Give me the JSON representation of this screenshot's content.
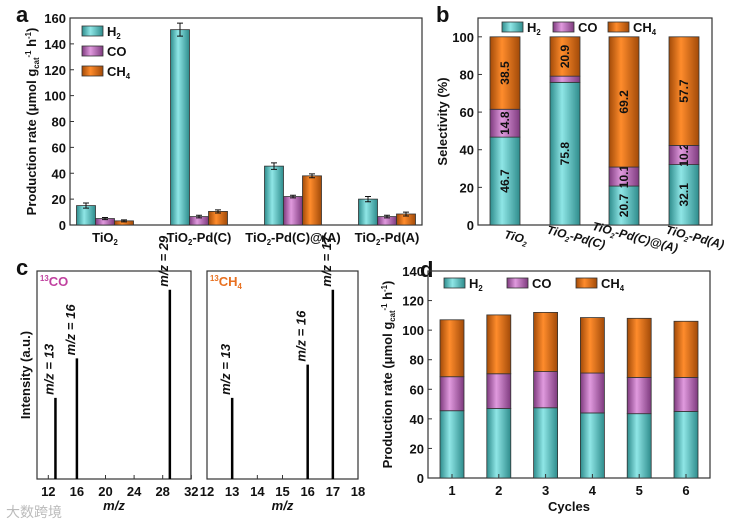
{
  "colors": {
    "H2": "#5fd0d0",
    "CO": "#c978c8",
    "CH4": "#f48020",
    "line": "#111111",
    "co_title": "#c0409f",
    "ch4_title": "#e87020"
  },
  "watermark": "大数跨境",
  "chart_data": [
    {
      "panel": "a",
      "type": "bar",
      "ylabel": "Production rate (μmol g_{cat}^{-1} h^{-1})",
      "ylim": [
        0,
        160
      ],
      "yticks": [
        "0",
        "20",
        "40",
        "60",
        "80",
        "100",
        "120",
        "140",
        "160"
      ],
      "categories": [
        "TiO_{2}",
        "TiO_{2}-Pd(C)",
        "TiO_{2}-Pd(C)@(A)",
        "TiO_{2}-Pd(A)"
      ],
      "legend": [
        "H_{2}",
        "CO",
        "CH_{4}"
      ],
      "legend_position": "top-left",
      "series": [
        {
          "name": "H2",
          "values": [
            15,
            151,
            45.5,
            20
          ],
          "errors": [
            2,
            5,
            2.5,
            2
          ]
        },
        {
          "name": "CO",
          "values": [
            5,
            6.5,
            22,
            6.5
          ],
          "errors": [
            0.8,
            1,
            1,
            1
          ]
        },
        {
          "name": "CH4",
          "values": [
            3.2,
            10.5,
            38,
            8.5
          ],
          "errors": [
            0.8,
            1.2,
            1.5,
            1.5
          ]
        }
      ]
    },
    {
      "panel": "b",
      "type": "bar",
      "stacked": true,
      "ylabel": "Selectivity (%)",
      "ylim": [
        0,
        110
      ],
      "yticks": [
        "0",
        "20",
        "40",
        "60",
        "80",
        "100"
      ],
      "categories": [
        "TiO_{2}",
        "TiO_{2}-Pd(C)",
        "TiO_{2}-Pd(C)@(A)",
        "TiO_{2}-Pd(A)"
      ],
      "legend": [
        "H_{2}",
        "CO",
        "CH_{4}"
      ],
      "legend_position": "top",
      "series": [
        {
          "name": "H2",
          "values": [
            46.7,
            75.8,
            20.7,
            32.1
          ],
          "labels": [
            "46.7",
            "75.8",
            "20.7",
            "32.1"
          ]
        },
        {
          "name": "CO",
          "values": [
            14.8,
            3.3,
            10.1,
            10.2
          ],
          "labels": [
            "14.8",
            "",
            "10.1",
            "10.2"
          ]
        },
        {
          "name": "CH4",
          "values": [
            38.5,
            20.9,
            69.2,
            57.7
          ],
          "labels": [
            "38.5",
            "20.9",
            "69.2",
            "57.7"
          ]
        }
      ]
    },
    {
      "panel": "c",
      "type": "bar",
      "subplots": [
        {
          "title": "^{13}CO",
          "xlabel": "m/z",
          "xlim": [
            10,
            32
          ],
          "xticks": [
            "12",
            "16",
            "20",
            "24",
            "28",
            "32"
          ],
          "peaks": [
            {
              "x": 13,
              "y": 0.39,
              "label": "m/z = 13"
            },
            {
              "x": 16,
              "y": 0.58,
              "label": "m/z = 16"
            },
            {
              "x": 29,
              "y": 0.91,
              "label": "m/z = 29"
            }
          ]
        },
        {
          "title": "^{13}CH_{4}",
          "xlabel": "m/z",
          "xlim": [
            12,
            18
          ],
          "xticks": [
            "12",
            "13",
            "14",
            "15",
            "16",
            "17",
            "18"
          ],
          "peaks": [
            {
              "x": 13,
              "y": 0.39,
              "label": "m/z = 13"
            },
            {
              "x": 16,
              "y": 0.55,
              "label": "m/z = 16"
            },
            {
              "x": 17,
              "y": 0.91,
              "label": "m/z = 17"
            }
          ]
        }
      ],
      "ylabel": "Intensity (a.u.)",
      "ylim": [
        0,
        1
      ]
    },
    {
      "panel": "d",
      "type": "bar",
      "stacked": true,
      "xlabel": "Cycles",
      "ylabel": "Production rate (μmol g_{cat}^{-1} h^{-1})",
      "ylim": [
        0,
        140
      ],
      "yticks": [
        "0",
        "20",
        "40",
        "60",
        "80",
        "100",
        "120",
        "140"
      ],
      "categories": [
        "1",
        "2",
        "3",
        "4",
        "5",
        "6"
      ],
      "legend": [
        "H_{2}",
        "CO",
        "CH_{4}"
      ],
      "legend_position": "top",
      "series": [
        {
          "name": "H2",
          "values": [
            45.5,
            47,
            47.5,
            44,
            43.5,
            45
          ]
        },
        {
          "name": "CO",
          "values": [
            23,
            23.5,
            24.5,
            27,
            24.5,
            23
          ]
        },
        {
          "name": "CH4",
          "values": [
            38.5,
            39.8,
            40,
            37.5,
            40,
            38
          ]
        }
      ]
    }
  ]
}
